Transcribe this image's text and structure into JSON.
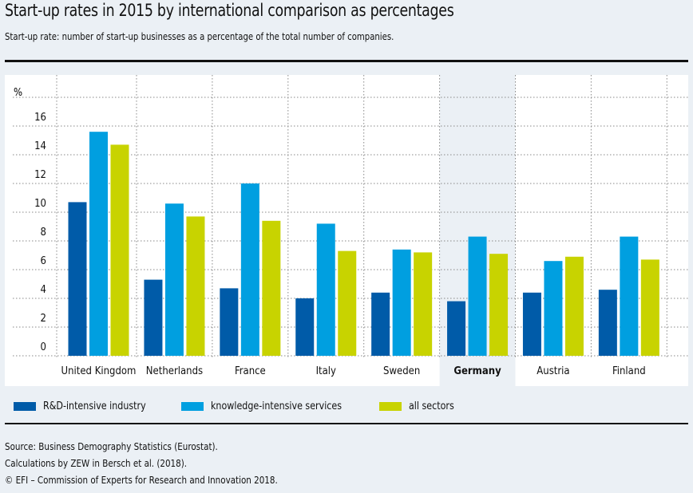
{
  "header": {
    "title": "Start-up rates in 2015 by international comparison as percentages",
    "subtitle": "Start-up rate: number of start-up businesses as a percentage of the total number of companies."
  },
  "colors": {
    "rd": "#005ba8",
    "kis": "#009fe0",
    "all": "#c8d300",
    "highlight_band": "#ebf0f5",
    "plot_bg": "#ffffff",
    "page_bg": "#ebf0f5"
  },
  "chart_data": {
    "type": "bar",
    "title": "Start-up rates in 2015 by international comparison as percentages",
    "xlabel": "",
    "ylabel": "%",
    "ylim": [
      0,
      18
    ],
    "yticks": [
      0,
      2,
      4,
      6,
      8,
      10,
      12,
      14,
      16
    ],
    "grid": true,
    "legend_position": "bottom-left",
    "highlighted_category": "Germany",
    "categories": [
      "United Kingdom",
      "Netherlands",
      "France",
      "Italy",
      "Sweden",
      "Germany",
      "Austria",
      "Finland"
    ],
    "series": [
      {
        "key": "rd",
        "name": "R&D-intensive industry",
        "values": [
          10.7,
          5.3,
          4.7,
          4.0,
          4.4,
          3.8,
          4.4,
          4.6
        ]
      },
      {
        "key": "kis",
        "name": "knowledge-intensive services",
        "values": [
          15.6,
          10.6,
          12.0,
          9.2,
          7.4,
          8.3,
          6.6,
          8.3
        ]
      },
      {
        "key": "all",
        "name": "all sectors",
        "values": [
          14.7,
          9.7,
          9.4,
          7.3,
          7.2,
          7.1,
          6.9,
          6.7
        ]
      }
    ]
  },
  "legend": {
    "items": [
      {
        "label": "R&D-intensive industry",
        "color_key": "rd"
      },
      {
        "label": "knowledge-intensive services",
        "color_key": "kis"
      },
      {
        "label": "all sectors",
        "color_key": "all"
      }
    ]
  },
  "footer": {
    "lines": [
      "Source: Business Demography Statistics (Eurostat).",
      "Calculations by ZEW in Bersch et al. (2018).",
      "© EFI – Commission of Experts for Research and Innovation 2018."
    ]
  }
}
